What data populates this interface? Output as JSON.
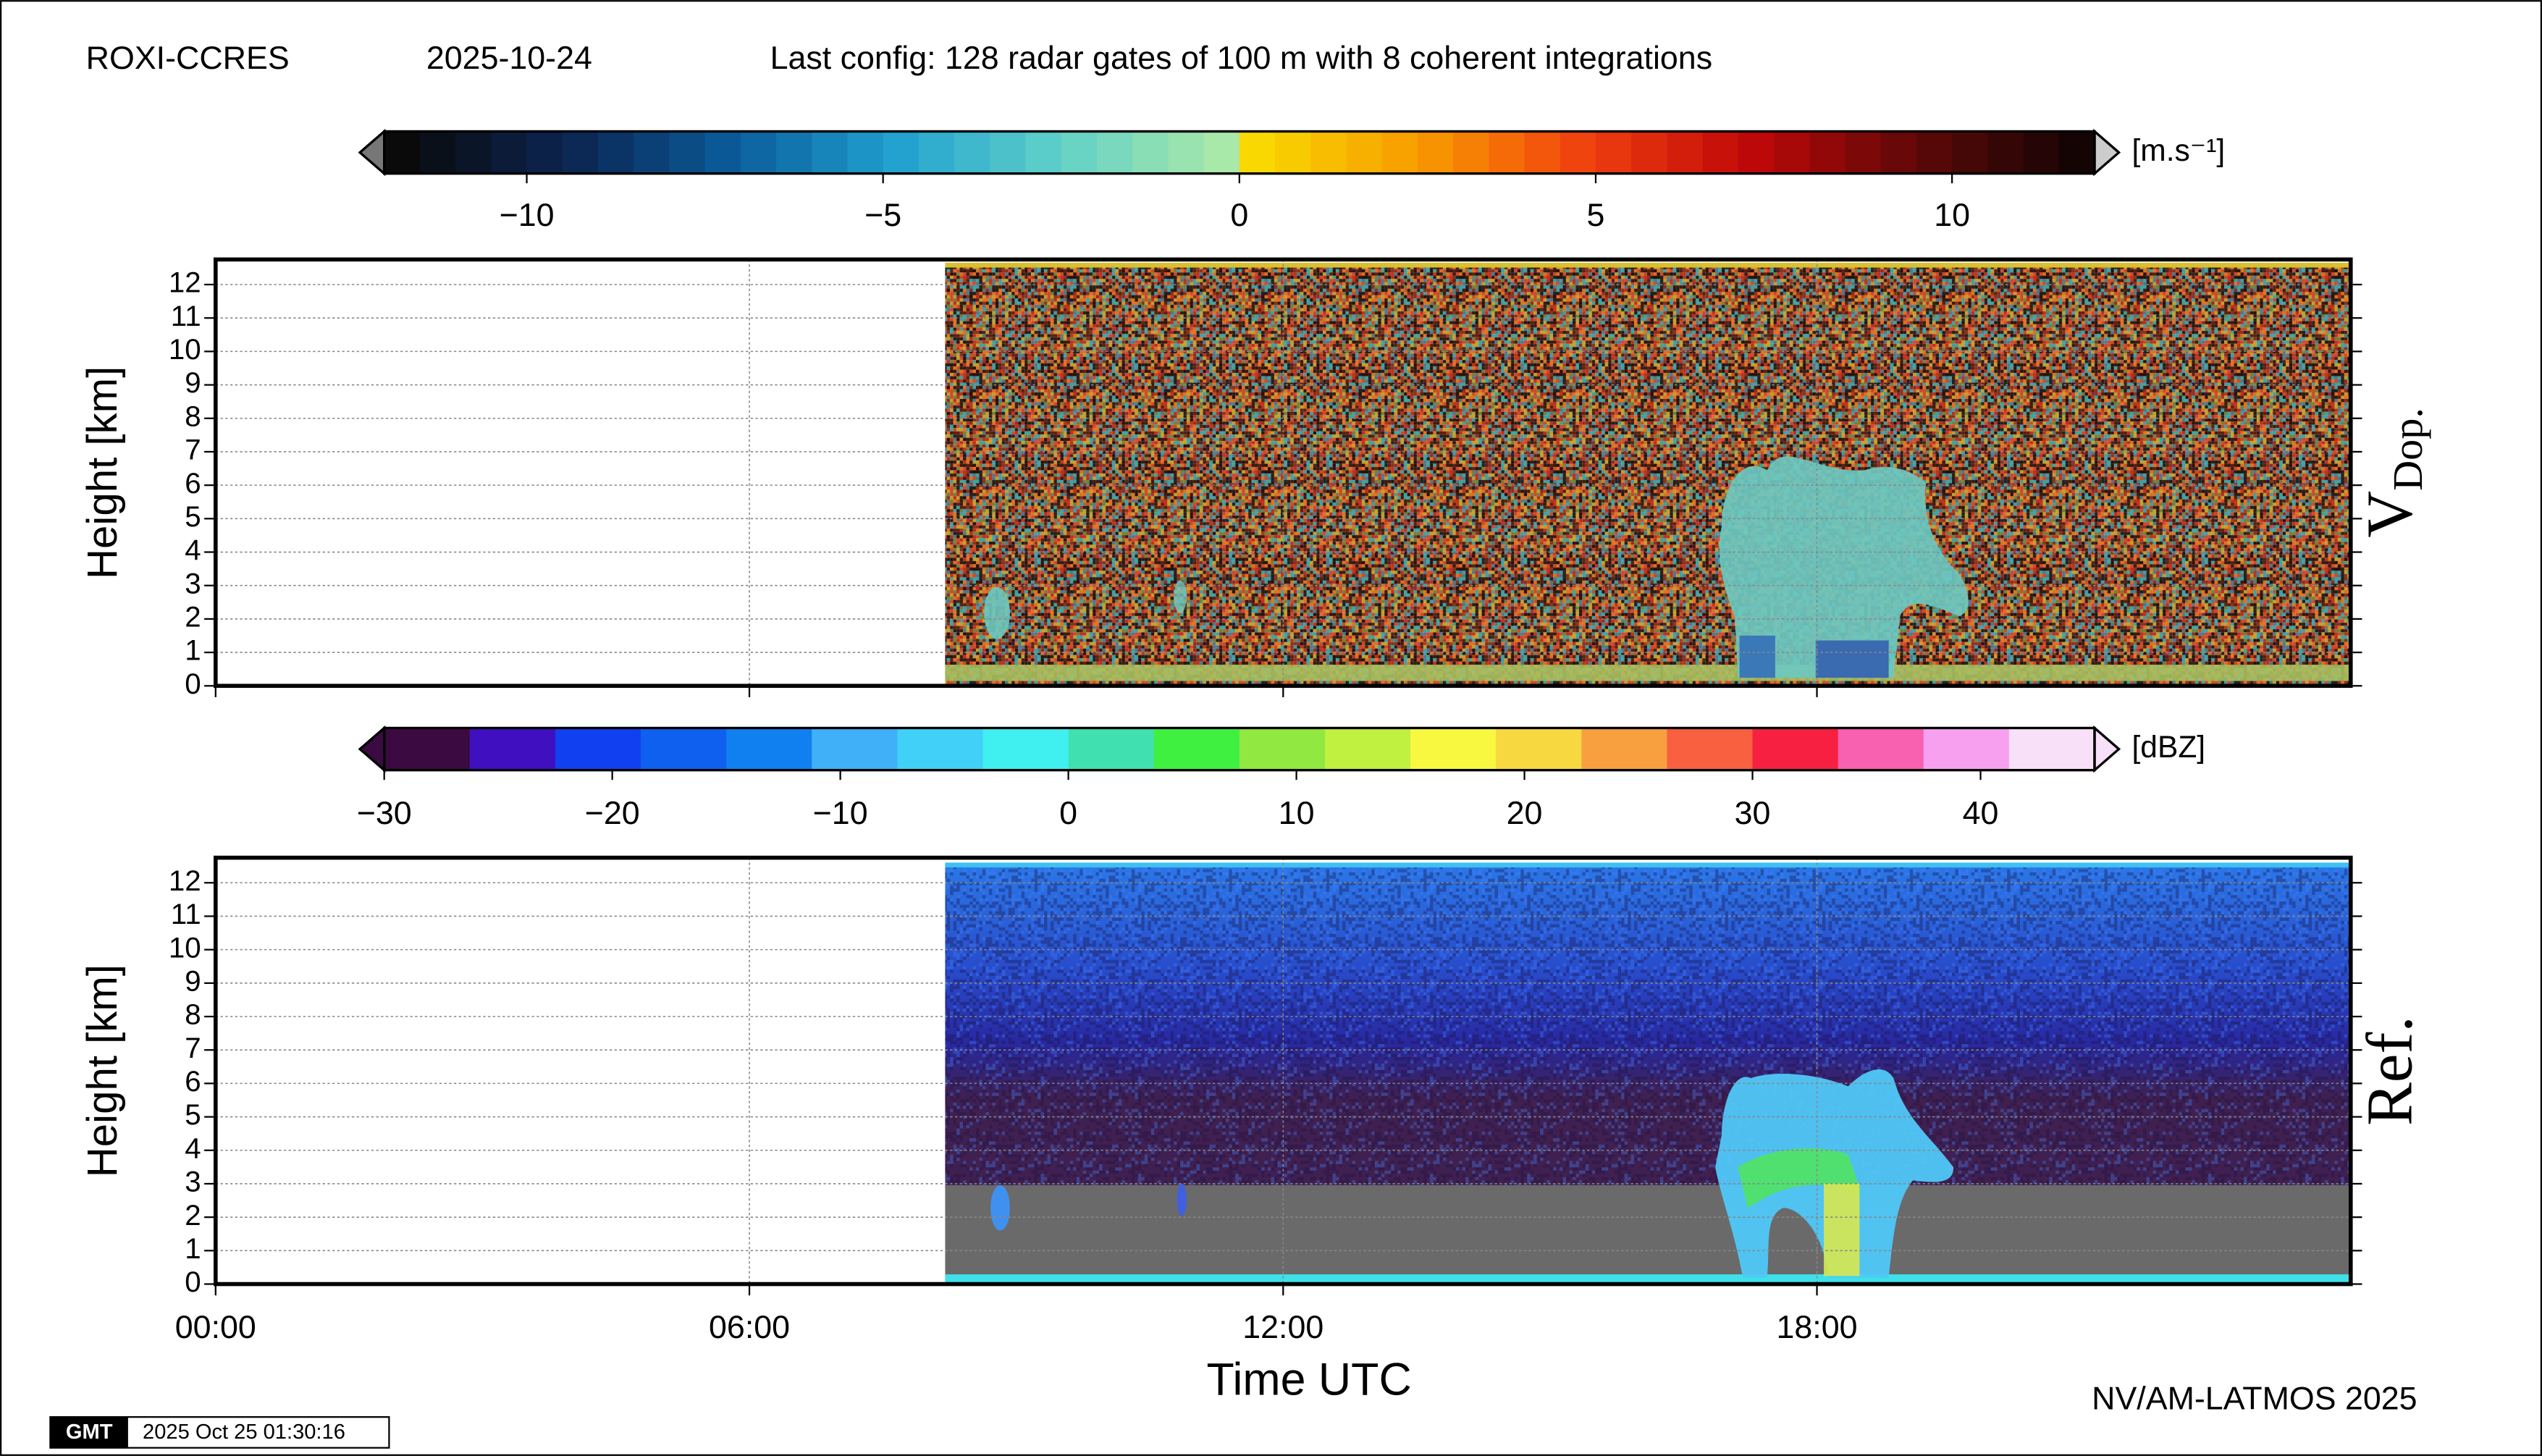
{
  "header": {
    "site": "ROXI-CCRES",
    "date": "2025-10-24",
    "config": "Last config: 128 radar gates of 100 m with 8 coherent integrations"
  },
  "chart_data": [
    {
      "type": "heatmap",
      "label": "V",
      "label_sub": "Dop.",
      "ylabel": "Height [km]",
      "xlim": [
        0,
        24
      ],
      "ylim": [
        0,
        12.75
      ],
      "yticks": [
        0,
        1,
        2,
        3,
        4,
        5,
        6,
        7,
        8,
        9,
        10,
        11,
        12
      ],
      "grid": true,
      "colorbar": {
        "unit": "[m.s⁻¹]",
        "lim": [
          -12,
          12
        ],
        "ticks": [
          {
            "value": -10,
            "label": "−10"
          },
          {
            "value": -5,
            "label": "−5"
          },
          0,
          5,
          10
        ],
        "colors_negative": [
          "#0a0a0a",
          "#0c2450",
          "#0a5a98",
          "#20a0d0",
          "#60d0c8",
          "#a8e8a8"
        ],
        "colors_positive": [
          "#f8d800",
          "#f89a00",
          "#f04010",
          "#c00808",
          "#600808",
          "#140404"
        ]
      }
    },
    {
      "type": "heatmap",
      "label": "Ref.",
      "ylabel": "Height [km]",
      "xlabel": "Time UTC",
      "xlim": [
        0,
        24
      ],
      "ylim": [
        0,
        12.75
      ],
      "yticks": [
        0,
        1,
        2,
        3,
        4,
        5,
        6,
        7,
        8,
        9,
        10,
        11,
        12
      ],
      "grid": true,
      "xticks": [
        {
          "value": 0,
          "label": "00:00"
        },
        {
          "value": 6,
          "label": "06:00"
        },
        {
          "value": 12,
          "label": "12:00"
        },
        {
          "value": 18,
          "label": "18:00"
        }
      ],
      "colorbar": {
        "unit": "[dBZ]",
        "lim": [
          -30,
          45
        ],
        "ticks": [
          {
            "value": -30,
            "label": "−30"
          },
          {
            "value": -20,
            "label": "−20"
          },
          {
            "value": -10,
            "label": "−10"
          },
          0,
          10,
          20,
          30,
          40
        ],
        "colors": [
          "#3a0a40",
          "#4010c0",
          "#1040f0",
          "#1060f0",
          "#1080f0",
          "#40b0f8",
          "#40d0f8",
          "#40f0f0",
          "#40e0b0",
          "#40f040",
          "#90e840",
          "#c0f040",
          "#f8f840",
          "#f8d840",
          "#f8a040",
          "#f86040",
          "#f82040",
          "#f860b0",
          "#f8a0f0",
          "#f8e0f8"
        ]
      }
    }
  ],
  "footer": {
    "credit": "NV/AM-LATMOS 2025",
    "logo": "GMT",
    "timestamp": "2025 Oct 25 01:30:16"
  }
}
